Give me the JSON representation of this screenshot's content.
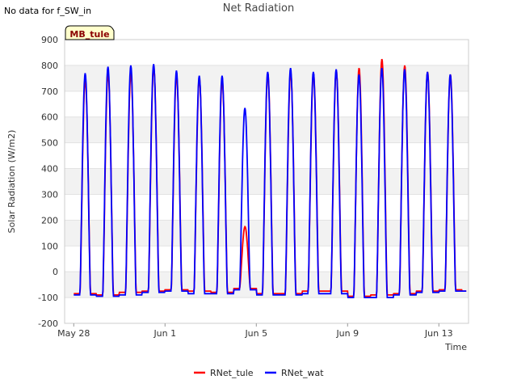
{
  "header": {
    "no_data_text": "No data for f_SW_in",
    "title": "Net Radiation"
  },
  "site_badge": {
    "label": "MB_tule",
    "bg_color": "#ffffcc",
    "text_color": "#8b0000"
  },
  "chart_data": {
    "type": "line",
    "title": "Net Radiation",
    "xlabel": "Time",
    "ylabel": "Solar Radiation (W/m2)",
    "ylim": [
      -200,
      900
    ],
    "yticks": [
      -200,
      -100,
      0,
      100,
      200,
      300,
      400,
      500,
      600,
      700,
      800,
      900
    ],
    "xlim_days": [
      -0.4,
      17.3
    ],
    "x_unit": "days since May 28",
    "xticks": [
      {
        "day": 0,
        "label": "May 28"
      },
      {
        "day": 4,
        "label": "Jun 1"
      },
      {
        "day": 8,
        "label": "Jun 5"
      },
      {
        "day": 12,
        "label": "Jun 9"
      },
      {
        "day": 16,
        "label": "Jun 13"
      }
    ],
    "grid": true,
    "banded_background": true,
    "legend_position": "bottom-center",
    "series": [
      {
        "name": "RNet_tule",
        "color": "#ff0000",
        "daily_peaks": [
          745,
          770,
          770,
          795,
          765,
          750,
          745,
          175,
          770,
          775,
          770,
          780,
          790,
          825,
          800,
          775,
          765
        ],
        "night_values": [
          -85,
          -90,
          -80,
          -75,
          -70,
          -75,
          -80,
          -65,
          -85,
          -85,
          -75,
          -75,
          -95,
          -90,
          -85,
          -75,
          -70,
          -75
        ]
      },
      {
        "name": "RNet_wat",
        "color": "#0000ff",
        "daily_peaks": [
          770,
          795,
          800,
          805,
          780,
          760,
          760,
          635,
          775,
          790,
          775,
          785,
          765,
          790,
          785,
          775,
          765
        ],
        "night_values": [
          -90,
          -95,
          -90,
          -80,
          -75,
          -85,
          -85,
          -70,
          -90,
          -90,
          -85,
          -85,
          -100,
          -100,
          -90,
          -80,
          -75,
          -75
        ]
      }
    ]
  },
  "legend": {
    "items": [
      {
        "label": "RNet_tule",
        "color": "#ff0000"
      },
      {
        "label": "RNet_wat",
        "color": "#0000ff"
      }
    ]
  }
}
